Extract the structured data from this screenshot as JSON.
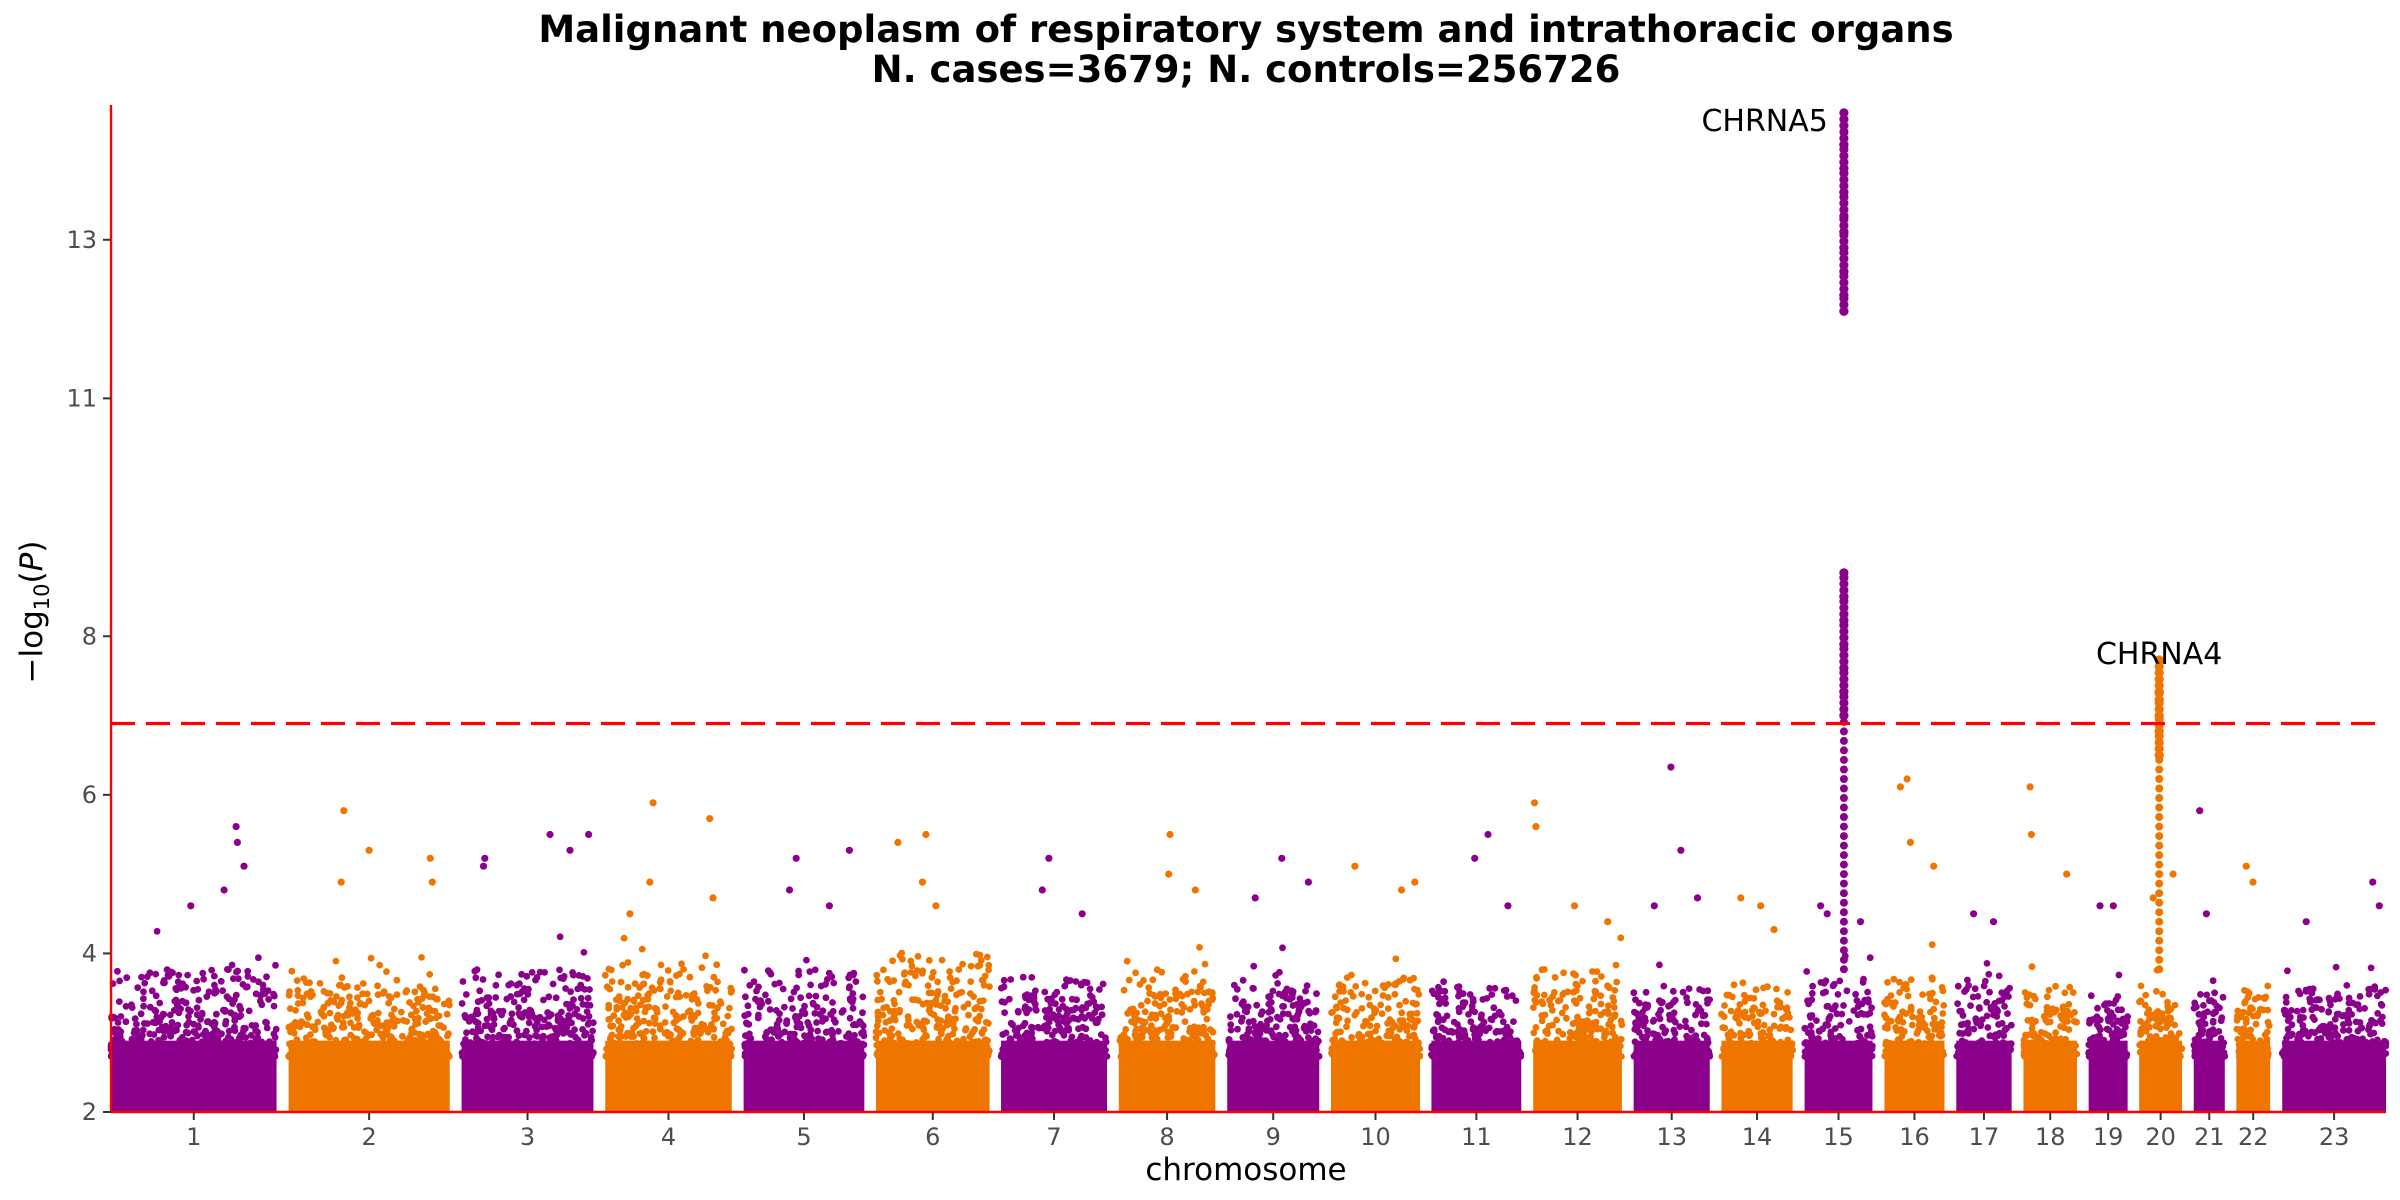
{
  "chart_data": {
    "type": "scatter",
    "title": "Malignant neoplasm of respiratory system and intrathoracic organs",
    "subtitle": "N. cases=3679; N. controls=256726",
    "xlabel": "chromosome",
    "ylabel": "−log10(P)",
    "ylim": [
      2,
      14.7
    ],
    "yticks": [
      2,
      4,
      6,
      8,
      11,
      13
    ],
    "grid": false,
    "legend": "none",
    "significance_line": 6.9,
    "colors": {
      "odd": "#8b008b",
      "even": "#ee7600",
      "threshold": "#ff0000",
      "axis": "#ff0000"
    },
    "chromosomes": [
      {
        "label": "1",
        "start": 0.0,
        "end": 248.9,
        "color": "odd",
        "base_max": 3.8,
        "outliers": [
          [
            170,
            4.8
          ],
          [
            188,
            5.6
          ],
          [
            190,
            5.4
          ],
          [
            200,
            5.1
          ],
          [
            120,
            4.6
          ]
        ]
      },
      {
        "label": "2",
        "start": 267.0,
        "end": 509.2,
        "color": "even",
        "base_max": 3.7,
        "outliers": [
          [
            346,
            4.9
          ],
          [
            350,
            5.8
          ],
          [
            388,
            5.3
          ],
          [
            480,
            5.2
          ],
          [
            483,
            4.9
          ]
        ]
      },
      {
        "label": "3",
        "start": 527.0,
        "end": 725.3,
        "color": "odd",
        "base_max": 3.8,
        "outliers": [
          [
            560,
            5.1
          ],
          [
            562,
            5.2
          ],
          [
            660,
            5.5
          ],
          [
            690,
            5.3
          ],
          [
            718,
            5.5
          ]
        ]
      },
      {
        "label": "4",
        "start": 743.0,
        "end": 933.2,
        "color": "even",
        "base_max": 3.9,
        "outliers": [
          [
            780,
            4.5
          ],
          [
            810,
            4.9
          ],
          [
            815,
            5.9
          ],
          [
            900,
            5.7
          ],
          [
            905,
            4.7
          ]
        ]
      },
      {
        "label": "5",
        "start": 951.0,
        "end": 1132.5,
        "color": "odd",
        "base_max": 3.8,
        "outliers": [
          [
            1020,
            4.8
          ],
          [
            1030,
            5.2
          ],
          [
            1080,
            4.6
          ],
          [
            1110,
            5.3
          ]
        ]
      },
      {
        "label": "6",
        "start": 1150.0,
        "end": 1320.8,
        "color": "even",
        "base_max": 4.0,
        "outliers": [
          [
            1183,
            5.4
          ],
          [
            1225,
            5.5
          ],
          [
            1220,
            4.9
          ],
          [
            1240,
            4.6
          ]
        ]
      },
      {
        "label": "7",
        "start": 1338.0,
        "end": 1497.3,
        "color": "odd",
        "base_max": 3.7,
        "outliers": [
          [
            1400,
            4.8
          ],
          [
            1410,
            5.2
          ],
          [
            1460,
            4.5
          ]
        ]
      },
      {
        "label": "8",
        "start": 1515.0,
        "end": 1660.1,
        "color": "even",
        "base_max": 3.8,
        "outliers": [
          [
            1590,
            5.0
          ],
          [
            1592,
            5.5
          ],
          [
            1630,
            4.8
          ]
        ]
      },
      {
        "label": "9",
        "start": 1678.0,
        "end": 1816.4,
        "color": "odd",
        "base_max": 3.6,
        "outliers": [
          [
            1720,
            4.7
          ],
          [
            1760,
            5.2
          ],
          [
            1800,
            4.9
          ]
        ]
      },
      {
        "label": "10",
        "start": 1834.0,
        "end": 1967.8,
        "color": "even",
        "base_max": 3.7,
        "outliers": [
          [
            1870,
            5.1
          ],
          [
            1940,
            4.8
          ],
          [
            1960,
            4.9
          ]
        ]
      },
      {
        "label": "11",
        "start": 1985.0,
        "end": 2120.1,
        "color": "odd",
        "base_max": 3.6,
        "outliers": [
          [
            2050,
            5.2
          ],
          [
            2070,
            5.5
          ],
          [
            2100,
            4.6
          ]
        ]
      },
      {
        "label": "12",
        "start": 2138.0,
        "end": 2271.3,
        "color": "even",
        "base_max": 3.8,
        "outliers": [
          [
            2140,
            5.9
          ],
          [
            2142,
            5.6
          ],
          [
            2200,
            4.6
          ],
          [
            2250,
            4.4
          ]
        ]
      },
      {
        "label": "13",
        "start": 2289.0,
        "end": 2403.4,
        "color": "odd",
        "base_max": 3.6,
        "outliers": [
          [
            2320,
            4.6
          ],
          [
            2345,
            6.35
          ],
          [
            2360,
            5.3
          ],
          [
            2385,
            4.7
          ]
        ]
      },
      {
        "label": "14",
        "start": 2421.0,
        "end": 2528.0,
        "color": "even",
        "base_max": 3.6,
        "outliers": [
          [
            2450,
            4.7
          ],
          [
            2480,
            4.6
          ],
          [
            2500,
            4.3
          ]
        ]
      },
      {
        "label": "15",
        "start": 2546.0,
        "end": 2648.0,
        "color": "odd",
        "base_max": 3.7,
        "outliers": [
          [
            2570,
            4.6
          ],
          [
            2580,
            4.5
          ],
          [
            2630,
            4.4
          ]
        ]
      },
      {
        "label": "16",
        "start": 2666.0,
        "end": 2756.3,
        "color": "even",
        "base_max": 3.7,
        "outliers": [
          [
            2690,
            6.1
          ],
          [
            2700,
            6.2
          ],
          [
            2705,
            5.4
          ],
          [
            2740,
            5.1
          ]
        ]
      },
      {
        "label": "17",
        "start": 2774.0,
        "end": 2857.2,
        "color": "odd",
        "base_max": 3.6,
        "outliers": [
          [
            2800,
            4.5
          ],
          [
            2830,
            4.4
          ]
        ]
      },
      {
        "label": "18",
        "start": 2875.0,
        "end": 2955.4,
        "color": "even",
        "base_max": 3.6,
        "outliers": [
          [
            2885,
            6.1
          ],
          [
            2887,
            5.5
          ],
          [
            2940,
            5.0
          ]
        ]
      },
      {
        "label": "19",
        "start": 2973.0,
        "end": 3031.6,
        "color": "odd",
        "base_max": 3.5,
        "outliers": [
          [
            2990,
            4.6
          ],
          [
            3010,
            4.6
          ]
        ]
      },
      {
        "label": "20",
        "start": 3049.0,
        "end": 3113.4,
        "color": "even",
        "base_max": 3.6,
        "outliers": [
          [
            3070,
            4.7
          ],
          [
            3100,
            5.0
          ]
        ]
      },
      {
        "label": "21",
        "start": 3131.0,
        "end": 3177.7,
        "color": "odd",
        "base_max": 3.5,
        "outliers": [
          [
            3140,
            5.8
          ],
          [
            3150,
            4.5
          ]
        ]
      },
      {
        "label": "22",
        "start": 3195.0,
        "end": 3245.8,
        "color": "even",
        "base_max": 3.6,
        "outliers": [
          [
            3210,
            5.1
          ],
          [
            3220,
            4.9
          ]
        ]
      },
      {
        "label": "23",
        "start": 3264.0,
        "end": 3420.0,
        "color": "odd",
        "base_max": 3.6,
        "outliers": [
          [
            3300,
            4.4
          ],
          [
            3400,
            4.9
          ],
          [
            3410,
            4.6
          ]
        ]
      }
    ],
    "peaks": [
      {
        "gene": "",
        "pos": 2605.0,
        "color": "odd",
        "values": [
          7.0,
          7.3,
          7.6,
          7.9,
          8.2,
          8.5,
          8.8,
          12.1,
          12.3,
          12.6,
          12.9,
          13.1,
          13.3,
          13.6,
          13.9,
          14.2,
          14.6
        ]
      },
      {
        "gene": "",
        "pos": 3079.0,
        "color": "even",
        "values": [
          6.5,
          6.8,
          7.0,
          7.2,
          7.3,
          7.7
        ]
      }
    ],
    "annotations": [
      {
        "text": "CHRNA5",
        "x": 2605.0,
        "y": 14.6,
        "anchor": "end"
      },
      {
        "text": "CHRNA4",
        "x": 3079.0,
        "y": 7.7,
        "anchor": "middle"
      }
    ]
  }
}
